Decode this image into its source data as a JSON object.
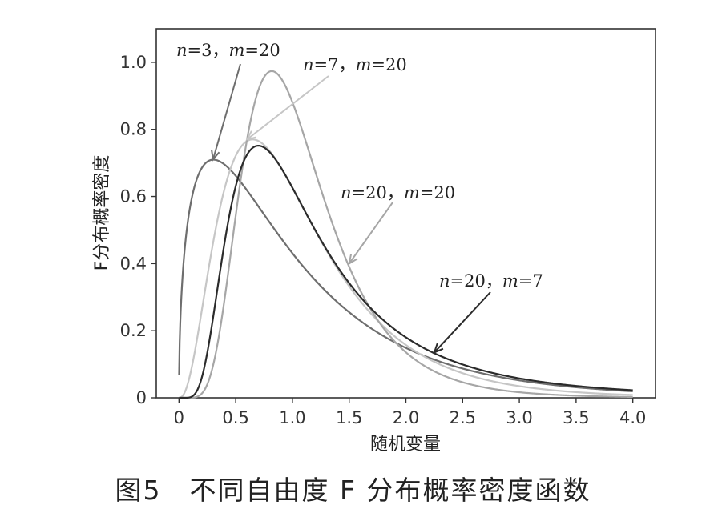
{
  "caption": "图5　不同自由度 F 分布概率密度函数",
  "chart_data": {
    "type": "line",
    "title": "",
    "xlabel": "随机变量",
    "ylabel": "F分布概率密度",
    "xlim": [
      -0.2,
      4.2
    ],
    "ylim": [
      0,
      1.1
    ],
    "xticks": [
      0,
      0.5,
      1.0,
      1.5,
      2.0,
      2.5,
      3.0,
      3.5,
      4.0
    ],
    "xtick_labels": [
      "0",
      "0.5",
      "1.0",
      "1.5",
      "2.0",
      "2.5",
      "3.0",
      "3.5",
      "4.0"
    ],
    "yticks": [
      0,
      0.2,
      0.4,
      0.6,
      0.8,
      1.0
    ],
    "ytick_labels": [
      "0",
      "0.2",
      "0.4",
      "0.6",
      "0.8",
      "1.0"
    ],
    "grid": false,
    "legend": "none",
    "series": [
      {
        "name": "n=3，m=20",
        "n": 3,
        "m": 20,
        "color": "#6e6e6e",
        "annotation": {
          "n_label": "n",
          "n_value": "=3，",
          "m_label": "m",
          "m_value": "=20",
          "point": [
            0.3,
            0.71
          ]
        }
      },
      {
        "name": "n=7，m=20",
        "n": 7,
        "m": 20,
        "color": "#c6c6c6",
        "annotation": {
          "n_label": "n",
          "n_value": "=7，",
          "m_label": "m",
          "m_value": "=20",
          "point": [
            0.6,
            0.77
          ]
        }
      },
      {
        "name": "n=20，m=20",
        "n": 20,
        "m": 20,
        "color": "#a6a6a6",
        "annotation": {
          "n_label": "n",
          "n_value": "=20，",
          "m_label": "m",
          "m_value": "=20",
          "point": [
            1.5,
            0.4
          ]
        }
      },
      {
        "name": "n=20，m=7",
        "n": 20,
        "m": 7,
        "color": "#2b2b2b",
        "annotation": {
          "n_label": "n",
          "n_value": "=20，",
          "m_label": "m",
          "m_value": "=7",
          "point": [
            2.25,
            0.135
          ]
        }
      }
    ]
  }
}
